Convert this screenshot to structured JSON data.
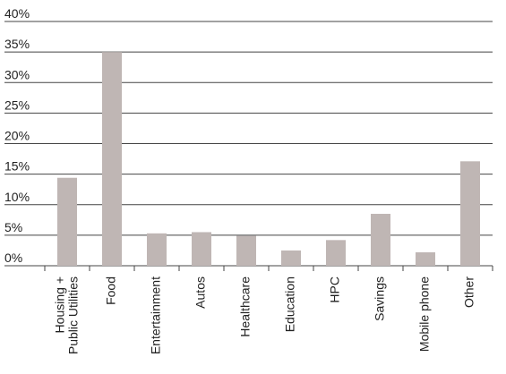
{
  "chart_data": {
    "type": "bar",
    "categories": [
      "Housing +\nPublic Utilities",
      "Food",
      "Entertainment",
      "Autos",
      "Healthcare",
      "Education",
      "HPC",
      "Savings",
      "Mobile phone",
      "Other"
    ],
    "values": [
      14.4,
      35,
      5.3,
      5.5,
      4.9,
      2.5,
      4.2,
      8.5,
      2.2,
      17.1
    ],
    "color": "#bfb6b4",
    "ylim": [
      0,
      40
    ],
    "yticks": [
      {
        "value": 0,
        "label": "0%"
      },
      {
        "value": 5,
        "label": "5%"
      },
      {
        "value": 10,
        "label": "10%"
      },
      {
        "value": 15,
        "label": "15%"
      },
      {
        "value": 20,
        "label": "20%"
      },
      {
        "value": 25,
        "label": "25%"
      },
      {
        "value": 30,
        "label": "30%"
      },
      {
        "value": 35,
        "label": "35%"
      },
      {
        "value": 40,
        "label": "40%"
      }
    ],
    "grid": true
  }
}
